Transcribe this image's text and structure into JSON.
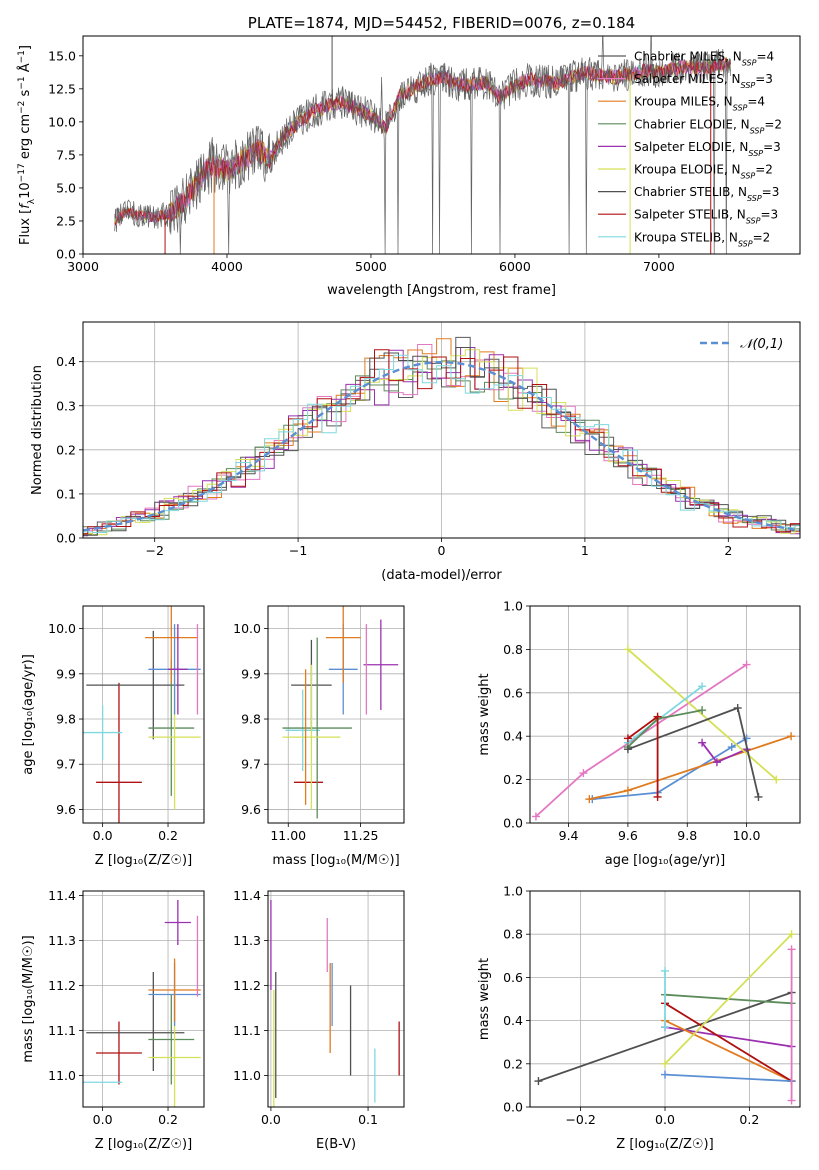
{
  "chart_data": [
    {
      "id": "spectrum",
      "type": "line",
      "title": "PLATE=1874, MJD=54452, FIBERID=0076, z=0.184",
      "xlabel": "wavelength [Angstrom, rest frame]",
      "ylabel": "Flux [f_λ 10⁻¹⁷ erg cm⁻² s⁻¹ Å⁻¹]",
      "xlim": [
        3000,
        7980
      ],
      "ylim": [
        0,
        16.5
      ],
      "xticks": [
        3000,
        4000,
        5000,
        6000,
        7000
      ],
      "yticks": [
        0.0,
        2.5,
        5.0,
        7.5,
        10.0,
        12.5,
        15.0
      ],
      "legend_position": "right",
      "series": [
        {
          "name": "Chabrier MILES, N_SSP=4",
          "color": "#5a5a5a"
        },
        {
          "name": "Salpeter MILES, N_SSP=3",
          "color": "#e377c2"
        },
        {
          "name": "Kroupa MILES, N_SSP=4",
          "color": "#e07b20"
        },
        {
          "name": "Chabrier ELODIE, N_SSP=2",
          "color": "#5b8c5a"
        },
        {
          "name": "Salpeter ELODIE, N_SSP=3",
          "color": "#9b30b0"
        },
        {
          "name": "Kroupa ELODIE, N_SSP=2",
          "color": "#d4e157"
        },
        {
          "name": "Chabrier STELIB, N_SSP=3",
          "color": "#505050"
        },
        {
          "name": "Salpeter STELIB, N_SSP=3",
          "color": "#b01010"
        },
        {
          "name": "Kroupa STELIB, N_SSP=2",
          "color": "#7fd8e0"
        }
      ],
      "continuum": {
        "x": [
          3220,
          3300,
          3400,
          3500,
          3600,
          3700,
          3800,
          3900,
          4000,
          4100,
          4200,
          4300,
          4400,
          4500,
          4600,
          4700,
          4800,
          4900,
          5000,
          5100,
          5200,
          5300,
          5400,
          5500,
          5600,
          5700,
          5800,
          5900,
          6000,
          6100,
          6200,
          6300,
          6400,
          6500,
          6600,
          6700,
          6800,
          6900,
          7000,
          7100,
          7200,
          7300,
          7400,
          7500
        ],
        "y": [
          2.5,
          3.2,
          2.9,
          2.8,
          3.0,
          4.0,
          5.5,
          6.8,
          6.3,
          7.0,
          8.0,
          7.2,
          9.0,
          10.0,
          10.8,
          11.2,
          11.5,
          11.0,
          10.5,
          9.5,
          12.0,
          12.6,
          13.2,
          13.4,
          12.8,
          12.8,
          13.0,
          11.8,
          12.8,
          13.2,
          13.1,
          12.9,
          13.4,
          13.7,
          13.5,
          13.4,
          13.6,
          13.9,
          13.7,
          14.0,
          14.2,
          14.0,
          14.3,
          14.4
        ]
      }
    },
    {
      "id": "residuals",
      "type": "line",
      "title": "",
      "xlabel": "(data-model)/error",
      "ylabel": "Normed distribution",
      "xlim": [
        -2.5,
        2.5
      ],
      "ylim": [
        0,
        0.49
      ],
      "xticks": [
        -2,
        -1,
        0,
        1,
        2
      ],
      "yticks": [
        0.0,
        0.1,
        0.2,
        0.3,
        0.4
      ],
      "legend_position": "top-right",
      "legend": "𝒩(0,1)",
      "gaussian": {
        "mean": 0,
        "sigma": 1,
        "color": "#5b8fd4"
      },
      "hist_colors": [
        "#5a5a5a",
        "#e377c2",
        "#e07b20",
        "#5b8c5a",
        "#9b30b0",
        "#d4e157",
        "#505050",
        "#b01010",
        "#7fd8e0"
      ],
      "grid": true
    },
    {
      "id": "age-vs-Z",
      "type": "scatter",
      "xlabel": "Z [log₁₀(Z/Z☉)]",
      "ylabel": "age  [log₁₀(age/yr)]",
      "xlim": [
        -0.06,
        0.31
      ],
      "ylim": [
        9.57,
        10.05
      ],
      "xticks": [
        0.0,
        0.2
      ],
      "yticks": [
        9.6,
        9.7,
        9.8,
        9.9,
        10.0
      ],
      "points": [
        {
          "x": 0.05,
          "y": 9.66,
          "xerr": 0.07,
          "yerr": 0.22,
          "color": "#b01010"
        },
        {
          "x": 0.0,
          "y": 9.77,
          "xerr": 0.06,
          "yerr": 0.06,
          "color": "#7fd8e0"
        },
        {
          "x": 0.1,
          "y": 9.875,
          "xerr": 0.15,
          "yerr": 0.0,
          "color": "#505050"
        },
        {
          "x": 0.155,
          "y": 9.875,
          "xerr": 0.0,
          "yerr": 0.12,
          "color": "#505050"
        },
        {
          "x": 0.21,
          "y": 9.78,
          "xerr": 0.07,
          "yerr": 0.15,
          "color": "#5b8c5a"
        },
        {
          "x": 0.22,
          "y": 9.76,
          "xerr": 0.08,
          "yerr": 0.16,
          "color": "#d4e157"
        },
        {
          "x": 0.22,
          "y": 9.91,
          "xerr": 0.08,
          "yerr": 0.1,
          "color": "#5b8fd4"
        },
        {
          "x": 0.21,
          "y": 9.98,
          "xerr": 0.08,
          "yerr": 0.1,
          "color": "#e07b20"
        },
        {
          "x": 0.23,
          "y": 9.91,
          "xerr": 0.03,
          "yerr": 0.1,
          "color": "#9b30b0"
        },
        {
          "x": 0.29,
          "y": 9.91,
          "xerr": 0.0,
          "yerr": 0.1,
          "color": "#e377c2"
        }
      ]
    },
    {
      "id": "age-vs-mass",
      "type": "scatter",
      "xlabel": "mass [log₁₀(M/M☉)]",
      "ylabel": "",
      "xlim": [
        10.93,
        11.4
      ],
      "ylim": [
        9.57,
        10.05
      ],
      "xticks": [
        11.0,
        11.25
      ],
      "yticks": [
        9.6,
        9.7,
        9.8,
        9.9,
        10.0
      ],
      "points": [
        {
          "x": 11.07,
          "y": 9.66,
          "xerr": 0.05,
          "yerr": 0.0,
          "color": "#b01010"
        },
        {
          "x": 11.05,
          "y": 9.775,
          "xerr": 0.06,
          "yerr": 0.09,
          "color": "#7fd8e0"
        },
        {
          "x": 11.08,
          "y": 9.875,
          "xerr": 0.07,
          "yerr": 0.1,
          "color": "#505050"
        },
        {
          "x": 11.1,
          "y": 9.78,
          "xerr": 0.12,
          "yerr": 0.2,
          "color": "#5b8c5a"
        },
        {
          "x": 11.08,
          "y": 9.76,
          "xerr": 0.1,
          "yerr": 0.16,
          "color": "#d4e157"
        },
        {
          "x": 11.06,
          "y": 9.76,
          "xerr": 0.0,
          "yerr": 0.15,
          "color": "#e07b20"
        },
        {
          "x": 11.19,
          "y": 9.91,
          "xerr": 0.05,
          "yerr": 0.1,
          "color": "#5b8fd4"
        },
        {
          "x": 11.19,
          "y": 9.98,
          "xerr": 0.06,
          "yerr": 0.1,
          "color": "#e07b20"
        },
        {
          "x": 11.32,
          "y": 9.92,
          "xerr": 0.06,
          "yerr": 0.1,
          "color": "#9b30b0"
        },
        {
          "x": 11.27,
          "y": 9.91,
          "xerr": 0.0,
          "yerr": 0.1,
          "color": "#e377c2"
        }
      ]
    },
    {
      "id": "mass-weight-vs-age",
      "type": "line",
      "xlabel": "age  [log₁₀(age/yr)]",
      "ylabel": "mass weight",
      "xlim": [
        9.27,
        10.18
      ],
      "ylim": [
        0.0,
        1.0
      ],
      "xticks": [
        9.4,
        9.6,
        9.8,
        10.0
      ],
      "yticks": [
        0.0,
        0.2,
        0.4,
        0.6,
        0.8,
        1.0
      ],
      "series": [
        {
          "color": "#e377c2",
          "x": [
            9.29,
            9.45,
            10.0
          ],
          "y": [
            0.03,
            0.23,
            0.73
          ]
        },
        {
          "color": "#5b8fd4",
          "x": [
            9.48,
            9.7,
            9.95,
            10.0
          ],
          "y": [
            0.11,
            0.14,
            0.35,
            0.39
          ]
        },
        {
          "color": "#e07b20",
          "x": [
            9.47,
            9.6,
            10.15
          ],
          "y": [
            0.11,
            0.15,
            0.4
          ]
        },
        {
          "color": "#9b30b0",
          "x": [
            9.85,
            9.9,
            10.0
          ],
          "y": [
            0.37,
            0.28,
            0.34
          ]
        },
        {
          "color": "#d4e157",
          "x": [
            9.6,
            10.1
          ],
          "y": [
            0.8,
            0.2
          ]
        },
        {
          "color": "#7fd8e0",
          "x": [
            9.6,
            9.85
          ],
          "y": [
            0.37,
            0.63
          ]
        },
        {
          "color": "#5b8c5a",
          "x": [
            9.6,
            9.7,
            9.85
          ],
          "y": [
            0.35,
            0.48,
            0.52
          ]
        },
        {
          "color": "#505050",
          "x": [
            9.6,
            9.97,
            10.04
          ],
          "y": [
            0.34,
            0.53,
            0.12
          ]
        },
        {
          "color": "#b01010",
          "x": [
            9.6,
            9.7,
            9.7
          ],
          "y": [
            0.39,
            0.49,
            0.12
          ]
        }
      ]
    },
    {
      "id": "mass-vs-Z",
      "type": "scatter",
      "xlabel": "Z [log₁₀(Z/Z☉)]",
      "ylabel": "mass [log₁₀(M/M☉)]",
      "xlim": [
        -0.06,
        0.31
      ],
      "ylim": [
        10.93,
        11.41
      ],
      "xticks": [
        0.0,
        0.2
      ],
      "yticks": [
        11.0,
        11.1,
        11.2,
        11.3,
        11.4
      ],
      "points": [
        {
          "x": 0.05,
          "y": 11.05,
          "xerr": 0.07,
          "yerr": 0.07,
          "color": "#b01010"
        },
        {
          "x": 0.0,
          "y": 10.985,
          "xerr": 0.06,
          "yerr": 0.0,
          "color": "#7fd8e0"
        },
        {
          "x": 0.1,
          "y": 11.095,
          "xerr": 0.15,
          "yerr": 0.0,
          "color": "#505050"
        },
        {
          "x": 0.155,
          "y": 11.12,
          "xerr": 0.0,
          "yerr": 0.11,
          "color": "#505050"
        },
        {
          "x": 0.21,
          "y": 11.08,
          "xerr": 0.07,
          "yerr": 0.1,
          "color": "#5b8c5a"
        },
        {
          "x": 0.22,
          "y": 11.04,
          "xerr": 0.08,
          "yerr": 0.14,
          "color": "#d4e157"
        },
        {
          "x": 0.22,
          "y": 11.18,
          "xerr": 0.08,
          "yerr": 0.07,
          "color": "#5b8fd4"
        },
        {
          "x": 0.22,
          "y": 11.19,
          "xerr": 0.08,
          "yerr": 0.07,
          "color": "#e07b20"
        },
        {
          "x": 0.23,
          "y": 11.34,
          "xerr": 0.04,
          "yerr": 0.05,
          "color": "#9b30b0"
        },
        {
          "x": 0.29,
          "y": 11.265,
          "xerr": 0.0,
          "yerr": 0.09,
          "color": "#e377c2"
        }
      ]
    },
    {
      "id": "mass-vs-ebv",
      "type": "scatter",
      "xlabel": "E(B-V)",
      "ylabel": "",
      "xlim": [
        -0.003,
        0.137
      ],
      "ylim": [
        10.93,
        11.41
      ],
      "xticks": [
        0.0,
        0.1
      ],
      "yticks": [
        11.0,
        11.1,
        11.2,
        11.3,
        11.4
      ],
      "points": [
        {
          "x": 0.0,
          "y": 11.29,
          "yerr": 0.1,
          "color": "#9b30b0"
        },
        {
          "x": 0.003,
          "y": 11.05,
          "yerr": 0.14,
          "color": "#d4e157"
        },
        {
          "x": 0.005,
          "y": 11.09,
          "yerr": 0.14,
          "color": "#505050"
        },
        {
          "x": 0.058,
          "y": 11.29,
          "yerr": 0.06,
          "color": "#e377c2"
        },
        {
          "x": 0.061,
          "y": 11.15,
          "yerr": 0.1,
          "color": "#e07b20"
        },
        {
          "x": 0.063,
          "y": 11.18,
          "yerr": 0.07,
          "color": "#5b8fd4"
        },
        {
          "x": 0.082,
          "y": 11.1,
          "yerr": 0.1,
          "color": "#505050"
        },
        {
          "x": 0.107,
          "y": 11.0,
          "yerr": 0.06,
          "color": "#7fd8e0"
        },
        {
          "x": 0.132,
          "y": 11.06,
          "yerr": 0.06,
          "color": "#b01010"
        }
      ]
    },
    {
      "id": "mass-weight-vs-Z",
      "type": "line",
      "xlabel": "Z [log₁₀(Z/Z☉)]",
      "ylabel": "mass weight",
      "xlim": [
        -0.32,
        0.32
      ],
      "ylim": [
        0.0,
        1.0
      ],
      "xticks": [
        -0.2,
        0.0,
        0.2
      ],
      "yticks": [
        0.0,
        0.2,
        0.4,
        0.6,
        0.8,
        1.0
      ],
      "series": [
        {
          "color": "#505050",
          "x": [
            -0.3,
            0.3
          ],
          "y": [
            0.12,
            0.53
          ]
        },
        {
          "color": "#5b8c5a",
          "x": [
            0.0,
            0.3
          ],
          "y": [
            0.52,
            0.48
          ]
        },
        {
          "color": "#9b30b0",
          "x": [
            0.0,
            0.3
          ],
          "y": [
            0.37,
            0.28
          ]
        },
        {
          "color": "#e07b20",
          "x": [
            0.0,
            0.3
          ],
          "y": [
            0.4,
            0.12
          ]
        },
        {
          "color": "#b01010",
          "x": [
            0.0,
            0.3
          ],
          "y": [
            0.48,
            0.12
          ]
        },
        {
          "color": "#5b8fd4",
          "x": [
            0.0,
            0.3
          ],
          "y": [
            0.15,
            0.12
          ]
        },
        {
          "color": "#d4e157",
          "x": [
            0.0,
            0.3
          ],
          "y": [
            0.2,
            0.8
          ]
        },
        {
          "color": "#7fd8e0",
          "x": [
            0.0,
            0.0
          ],
          "y": [
            0.37,
            0.63
          ]
        },
        {
          "color": "#e377c2",
          "x": [
            0.3,
            0.3
          ],
          "y": [
            0.03,
            0.73
          ]
        }
      ]
    }
  ]
}
